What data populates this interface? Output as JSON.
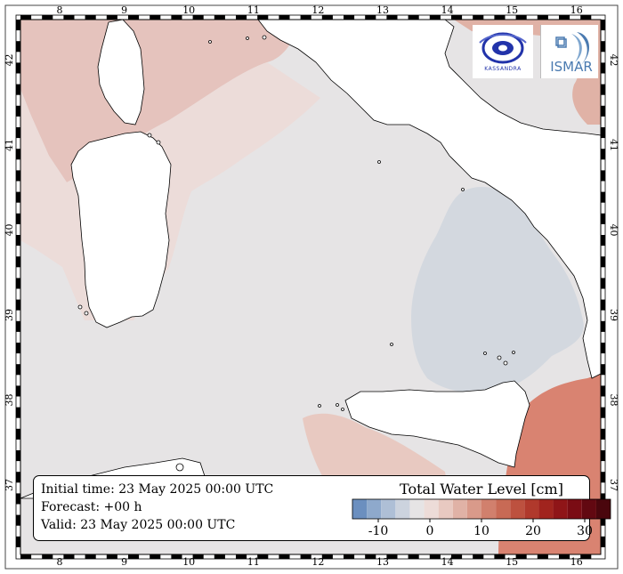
{
  "map": {
    "lon_ticks": [
      "8",
      "9",
      "10",
      "11",
      "12",
      "13",
      "14",
      "15",
      "16"
    ],
    "lat_ticks": [
      "37",
      "38",
      "39",
      "40",
      "41",
      "42"
    ],
    "colors": {
      "land": "#ffffff",
      "sea_neutral": "#e6e4e5",
      "sea_slight_positive": "#ecdcd9",
      "sea_positive": "#e5c3bd",
      "sea_strong_positive": "#d98371",
      "sea_negative": "#d3d8df"
    }
  },
  "info": {
    "initial_time": "Initial time: 23 May 2025 00:00 UTC",
    "forecast": "Forecast: +00 h",
    "valid": "Valid: 23 May 2025 00:00 UTC"
  },
  "legend": {
    "title": "Total Water Level [cm]",
    "tick_labels": [
      "-10",
      "0",
      "10",
      "20",
      "30"
    ],
    "tick_values": [
      -10,
      0,
      10,
      20,
      30
    ],
    "range": [
      -15,
      35
    ],
    "colors": [
      "#6b8fbf",
      "#8ea9cc",
      "#aebfd6",
      "#ccd3de",
      "#e6e4e5",
      "#eddcd8",
      "#e8c9c1",
      "#e0b2a6",
      "#d99a8a",
      "#d1806d",
      "#c86a55",
      "#bd513f",
      "#b0392c",
      "#a1241e",
      "#8f1518",
      "#7a0c14",
      "#620811",
      "#4a060d"
    ]
  },
  "logos": {
    "left_text": "KASSANDRA",
    "right_text": "ISMAR"
  }
}
